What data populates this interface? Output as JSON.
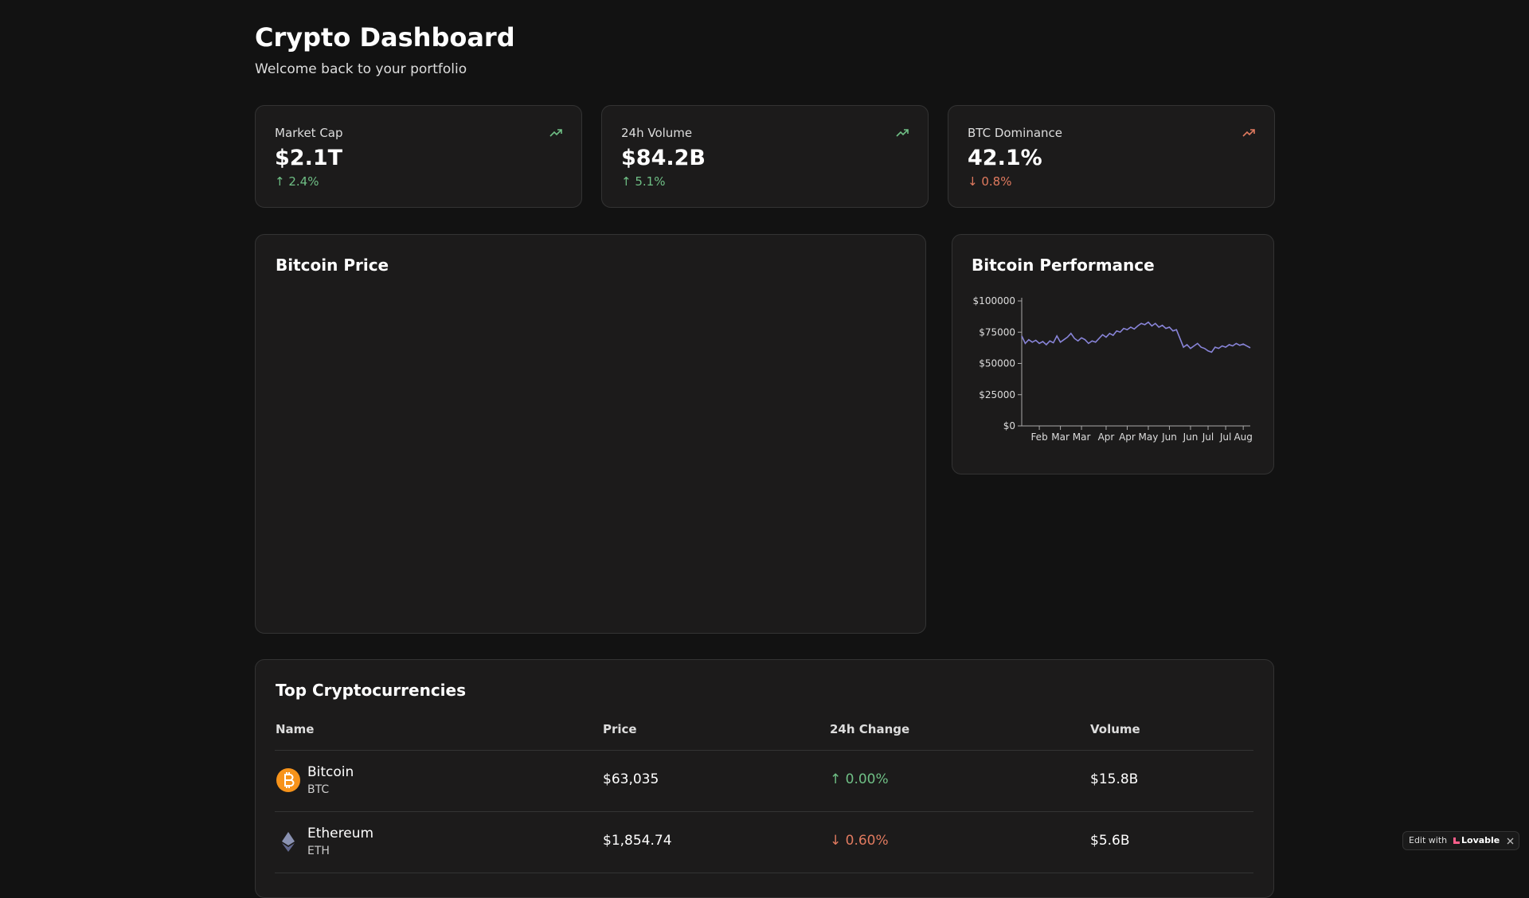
{
  "header": {
    "title": "Crypto Dashboard",
    "subtitle": "Welcome back to your portfolio"
  },
  "stats": [
    {
      "label": "Market Cap",
      "value": "$2.1T",
      "change": "↑ 2.4%",
      "trend": "up"
    },
    {
      "label": "24h Volume",
      "value": "$84.2B",
      "change": "↑ 5.1%",
      "trend": "up"
    },
    {
      "label": "BTC Dominance",
      "value": "42.1%",
      "change": "↓ 0.8%",
      "trend": "down"
    }
  ],
  "price_card": {
    "title": "Bitcoin Price"
  },
  "performance": {
    "title": "Bitcoin Performance",
    "chart_data": {
      "type": "line",
      "color": "#8884d8",
      "values": [
        72000,
        66000,
        69000,
        67000,
        68500,
        66000,
        67500,
        65000,
        68000,
        66500,
        72000,
        67000,
        69000,
        71000,
        74000,
        70000,
        68000,
        70500,
        69000,
        66000,
        68000,
        67000,
        70000,
        73000,
        71000,
        74000,
        72500,
        76000,
        75000,
        78000,
        77000,
        79000,
        77500,
        80000,
        82000,
        81000,
        83000,
        80000,
        82000,
        79000,
        80500,
        78000,
        79000,
        76000,
        77000,
        70000,
        63000,
        65000,
        62000,
        64000,
        66000,
        63000,
        62000,
        60000,
        59000,
        63000,
        62000,
        64000,
        63000,
        65000,
        64000,
        66000,
        64500,
        65500,
        64000,
        62500
      ],
      "xlim": [
        0,
        65
      ],
      "xticks": [
        {
          "value": 5,
          "label": "Feb"
        },
        {
          "value": 11,
          "label": "Mar"
        },
        {
          "value": 17,
          "label": "Mar"
        },
        {
          "value": 24,
          "label": "Apr"
        },
        {
          "value": 30,
          "label": "Apr"
        },
        {
          "value": 36,
          "label": "May"
        },
        {
          "value": 42,
          "label": "Jun"
        },
        {
          "value": 48,
          "label": "Jun"
        },
        {
          "value": 53,
          "label": "Jul"
        },
        {
          "value": 58,
          "label": "Jul"
        },
        {
          "value": 63,
          "label": "Aug"
        }
      ],
      "ylim": [
        0,
        100000
      ],
      "yticks": [
        {
          "value": 0,
          "label": "$0"
        },
        {
          "value": 25000,
          "label": "$25000"
        },
        {
          "value": 50000,
          "label": "$50000"
        },
        {
          "value": 75000,
          "label": "$75000"
        },
        {
          "value": 100000,
          "label": "$100000"
        }
      ]
    }
  },
  "table": {
    "title": "Top Cryptocurrencies",
    "columns": [
      "Name",
      "Price",
      "24h Change",
      "Volume"
    ],
    "rows": [
      {
        "name": "Bitcoin",
        "symbol": "BTC",
        "price": "$63,035",
        "change": "↑ 0.00%",
        "trend": "up",
        "volume": "$15.8B"
      },
      {
        "name": "Ethereum",
        "symbol": "ETH",
        "price": "$1,854.74",
        "change": "↓ 0.60%",
        "trend": "down",
        "volume": "$5.6B"
      }
    ]
  },
  "badge": {
    "text": "Edit with",
    "brand": "Lovable"
  }
}
